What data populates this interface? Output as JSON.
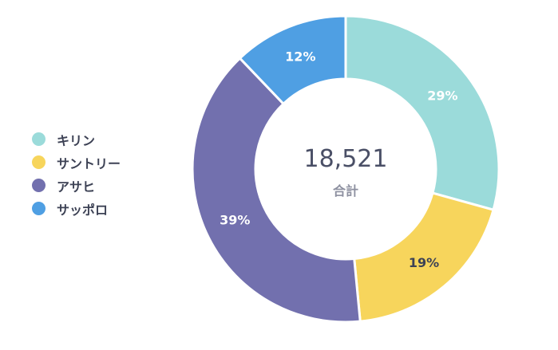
{
  "chart_data": {
    "type": "pie",
    "donut": true,
    "categories": [
      "キリン",
      "サントリー",
      "アサヒ",
      "サッポロ"
    ],
    "values": [
      29,
      19,
      39,
      12
    ],
    "labels": [
      "29%",
      "19%",
      "39%",
      "12%"
    ],
    "colors": [
      "#9bdbda",
      "#f7d55c",
      "#7270ae",
      "#4f9fe3"
    ],
    "label_colors": [
      "#ffffff",
      "#3d4255",
      "#ffffff",
      "#ffffff"
    ],
    "center_value": "18,521",
    "center_label": "合計",
    "legend_position": "left"
  }
}
